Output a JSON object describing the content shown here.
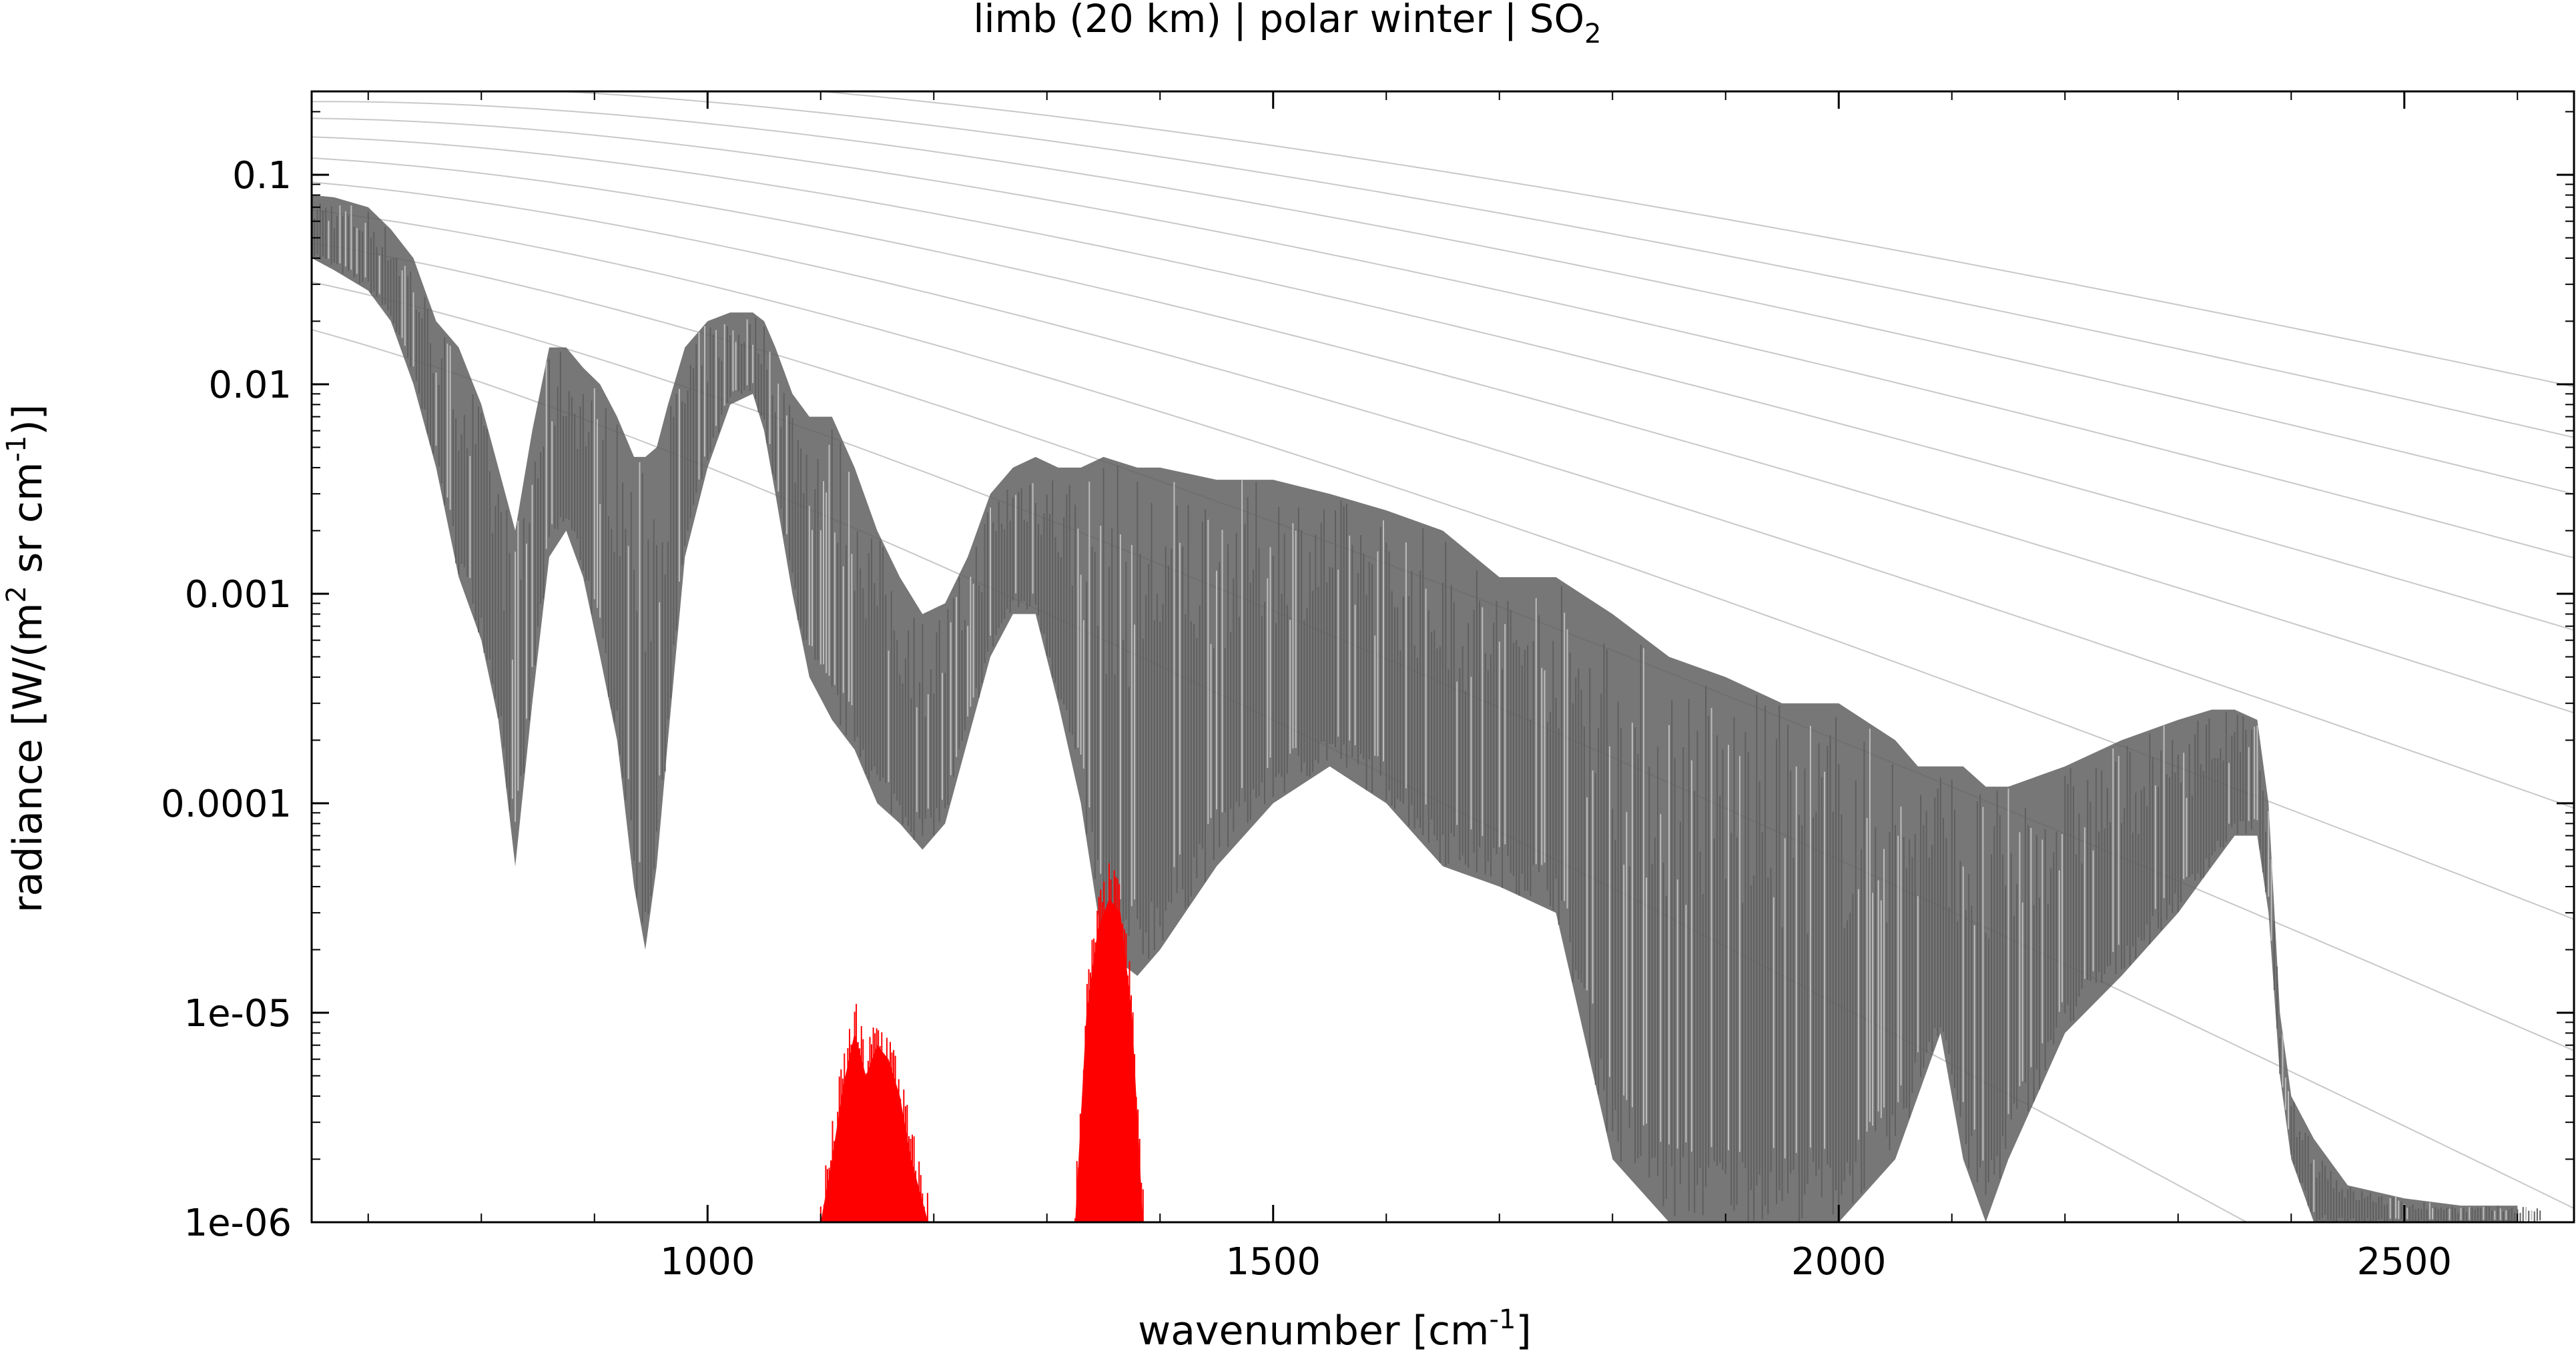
{
  "chart_data": {
    "type": "line",
    "title": {
      "prefix": "limb (20 km) | polar winter | SO",
      "subscript": "2"
    },
    "xlabel": {
      "prefix": "wavenumber [cm",
      "superscript": "-1",
      "suffix": "]"
    },
    "ylabel": {
      "part1": "radiance [W/(m",
      "sup1": "2",
      "part2": " sr cm",
      "sup2": "-1",
      "part3": ")]"
    },
    "xlim": [
      650,
      2650
    ],
    "ylim": [
      1e-06,
      0.25
    ],
    "y_scale": "log",
    "grid": false,
    "legend": "none",
    "x_ticks": [
      {
        "value": 1000,
        "label": "1000"
      },
      {
        "value": 1500,
        "label": "1500"
      },
      {
        "value": 2000,
        "label": "2000"
      },
      {
        "value": 2500,
        "label": "2500"
      }
    ],
    "y_ticks": [
      {
        "value": 0.1,
        "label": "0.1"
      },
      {
        "value": 0.01,
        "label": "0.01"
      },
      {
        "value": 0.001,
        "label": "0.001"
      },
      {
        "value": 0.0001,
        "label": "0.0001"
      },
      {
        "value": 1e-05,
        "label": "1e-05"
      },
      {
        "value": 1e-06,
        "label": "1e-06"
      }
    ],
    "colors": {
      "total_spectrum": "#5f5f5f",
      "total_spectrum_light": "#bdbdbd",
      "so2_contribution": "#ff0000",
      "blackbody_reference": "#c8c8c8"
    },
    "series": [
      {
        "role": "total spectrum (upper envelope)",
        "x": [
          650,
          670,
          700,
          720,
          740,
          760,
          780,
          800,
          815,
          830,
          845,
          860,
          875,
          890,
          905,
          920,
          935,
          945,
          955,
          965,
          980,
          1000,
          1020,
          1040,
          1050,
          1060,
          1075,
          1090,
          1110,
          1130,
          1150,
          1170,
          1190,
          1210,
          1230,
          1250,
          1270,
          1290,
          1310,
          1330,
          1350,
          1380,
          1400,
          1450,
          1500,
          1550,
          1600,
          1650,
          1700,
          1750,
          1800,
          1850,
          1900,
          1950,
          2000,
          2050,
          2070,
          2090,
          2110,
          2130,
          2150,
          2200,
          2250,
          2300,
          2330,
          2350,
          2370,
          2380,
          2390,
          2400,
          2420,
          2450,
          2500,
          2550,
          2600
        ],
        "y": [
          0.08,
          0.078,
          0.07,
          0.055,
          0.04,
          0.02,
          0.015,
          0.008,
          0.004,
          0.002,
          0.006,
          0.015,
          0.015,
          0.012,
          0.01,
          0.007,
          0.0045,
          0.0045,
          0.005,
          0.008,
          0.015,
          0.02,
          0.022,
          0.022,
          0.02,
          0.015,
          0.009,
          0.007,
          0.007,
          0.004,
          0.002,
          0.0012,
          0.0008,
          0.0009,
          0.0015,
          0.003,
          0.004,
          0.0045,
          0.004,
          0.004,
          0.0045,
          0.004,
          0.004,
          0.0035,
          0.0035,
          0.003,
          0.0025,
          0.002,
          0.0012,
          0.0012,
          0.0008,
          0.0005,
          0.0004,
          0.0003,
          0.0003,
          0.0002,
          0.00015,
          0.00015,
          0.00015,
          0.00012,
          0.00012,
          0.00015,
          0.0002,
          0.00025,
          0.00028,
          0.00028,
          0.00025,
          0.0001,
          1e-05,
          4e-06,
          2.5e-06,
          1.5e-06,
          1.3e-06,
          1.2e-06,
          1.2e-06
        ]
      },
      {
        "role": "total spectrum (lower envelope)",
        "x": [
          650,
          670,
          700,
          720,
          740,
          760,
          780,
          800,
          815,
          830,
          845,
          860,
          875,
          890,
          905,
          920,
          935,
          945,
          955,
          965,
          980,
          1000,
          1020,
          1040,
          1050,
          1060,
          1075,
          1090,
          1110,
          1130,
          1150,
          1170,
          1190,
          1210,
          1230,
          1250,
          1270,
          1290,
          1310,
          1330,
          1350,
          1380,
          1400,
          1450,
          1500,
          1550,
          1600,
          1650,
          1700,
          1750,
          1800,
          1850,
          1900,
          1950,
          2000,
          2050,
          2070,
          2090,
          2110,
          2130,
          2150,
          2200,
          2250,
          2300,
          2330,
          2350,
          2370,
          2380,
          2390,
          2400,
          2420,
          2450,
          2500,
          2550,
          2600
        ],
        "y": [
          0.04,
          0.035,
          0.028,
          0.02,
          0.01,
          0.004,
          0.0012,
          0.0006,
          0.00025,
          5e-05,
          0.0003,
          0.0015,
          0.002,
          0.0012,
          0.0005,
          0.0002,
          4e-05,
          2e-05,
          5e-05,
          0.0002,
          0.0015,
          0.004,
          0.008,
          0.009,
          0.006,
          0.003,
          0.001,
          0.0004,
          0.00025,
          0.00018,
          0.0001,
          8e-05,
          6e-05,
          8e-05,
          0.0002,
          0.0005,
          0.0008,
          0.0008,
          0.0003,
          0.0001,
          2e-05,
          1.5e-05,
          2e-05,
          5e-05,
          0.0001,
          0.00015,
          0.0001,
          5e-05,
          4e-05,
          3e-05,
          2e-06,
          1e-06,
          1e-06,
          1e-06,
          1e-06,
          2e-06,
          4e-06,
          8e-06,
          2e-06,
          1e-06,
          2e-06,
          8e-06,
          1.5e-05,
          3e-05,
          5e-05,
          7e-05,
          7e-05,
          3e-05,
          5e-06,
          2e-06,
          1e-06,
          1e-06,
          1e-06,
          1e-06,
          1e-06
        ]
      },
      {
        "role": "SO2 contribution band 1",
        "x": [
          1100,
          1110,
          1120,
          1130,
          1140,
          1150,
          1160,
          1170,
          1180,
          1195
        ],
        "y": [
          1e-06,
          2e-06,
          4.5e-06,
          8e-06,
          5e-06,
          7e-06,
          6e-06,
          4e-06,
          2e-06,
          1e-06
        ]
      },
      {
        "role": "SO2 contribution band 2",
        "x": [
          1325,
          1335,
          1345,
          1355,
          1365,
          1375,
          1385
        ],
        "y": [
          1e-06,
          1e-05,
          2.5e-05,
          3.5e-05,
          3e-05,
          1e-05,
          1e-06
        ]
      }
    ],
    "blackbody_reference_temperatures_K": [
      180,
      200,
      220,
      240,
      260,
      280,
      300,
      320,
      340,
      360,
      380
    ]
  }
}
